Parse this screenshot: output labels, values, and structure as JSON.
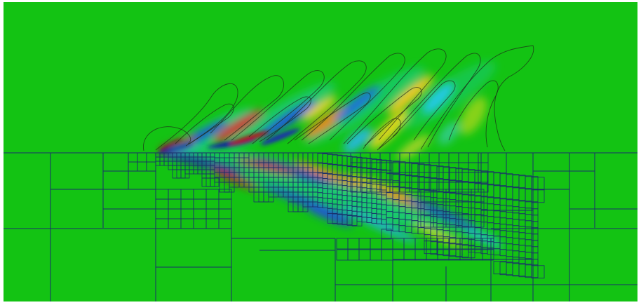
{
  "visualization": {
    "background_color": "#ffffff",
    "field_base_color": "#13c313",
    "mesh_color": "#1a2f6b",
    "contour_color": "#1f2a1a",
    "colormap": [
      "#1e1e9c",
      "#1a7ae0",
      "#21d6e6",
      "#13c313",
      "#e6e21a",
      "#f07a12",
      "#c0181a"
    ]
  }
}
